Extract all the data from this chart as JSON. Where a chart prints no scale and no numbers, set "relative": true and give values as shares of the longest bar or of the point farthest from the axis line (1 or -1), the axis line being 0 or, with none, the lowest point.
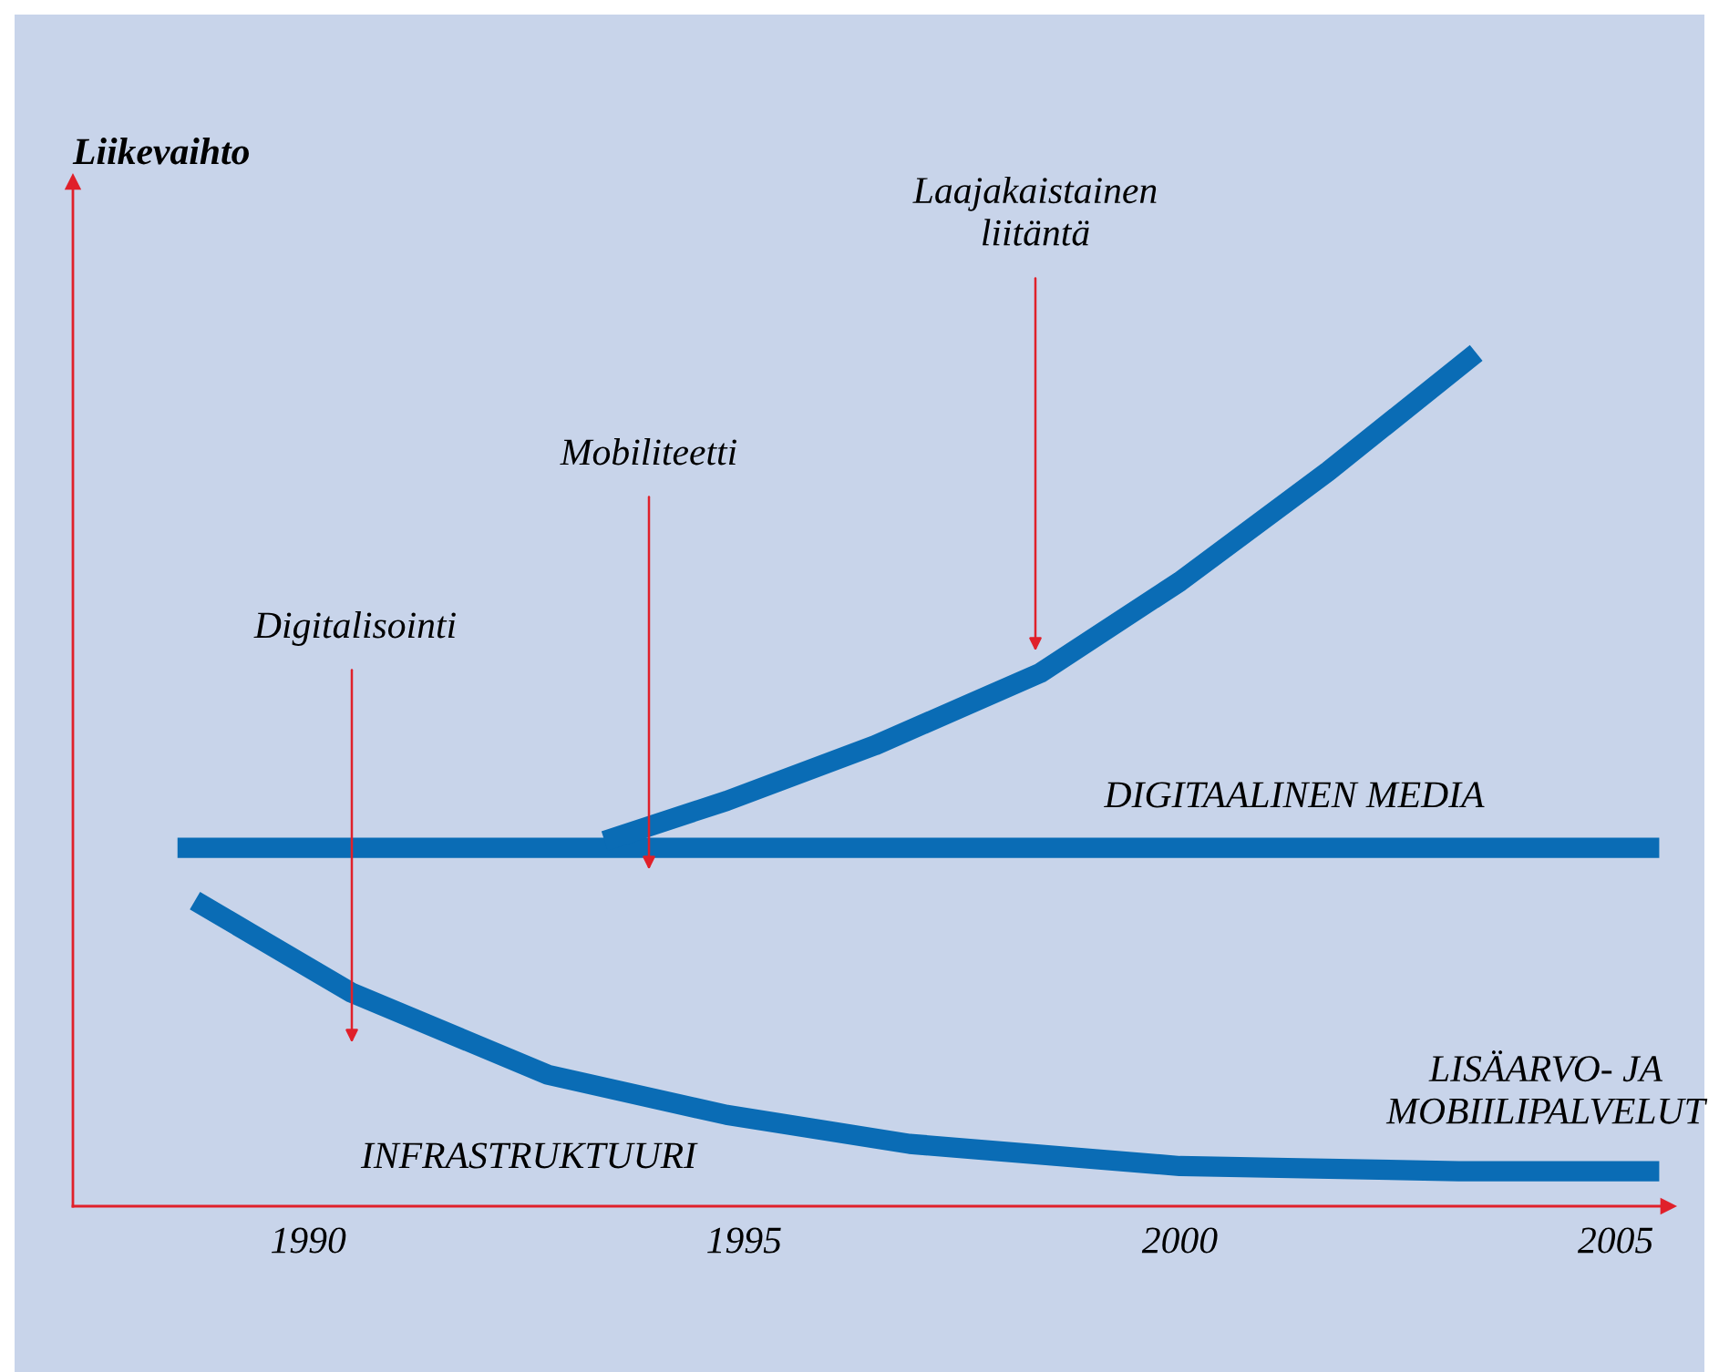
{
  "chart_data": {
    "type": "line",
    "relative": true,
    "xlim": [
      1987.3,
      2005.6
    ],
    "xticks": [
      1990,
      1995,
      2000,
      2005
    ],
    "grid": false,
    "legend": false,
    "tick_labels": "x",
    "series": [
      {
        "color": "#0a6cb5",
        "x": [
          1988.5,
          2005.5
        ],
        "values": [
          0.42,
          0.42
        ]
      },
      {
        "color": "#0a6cb5",
        "x": [
          1993.4,
          1994.8,
          1996.5,
          1998.4,
          2000.0,
          2001.7,
          2003.4
        ],
        "values": [
          0.428,
          0.475,
          0.54,
          0.625,
          0.732,
          0.861,
          1.0
        ]
      },
      {
        "color": "#0a6cb5",
        "x": [
          1988.7,
          1990.5,
          1992.75,
          1994.8,
          1996.9,
          2000.0,
          2003.2,
          2005.5
        ],
        "values": [
          0.358,
          0.25,
          0.154,
          0.107,
          0.073,
          0.047,
          0.041,
          0.041
        ]
      }
    ],
    "annotations": [
      "Liikevaihto",
      "Digitalisointi",
      "Mobiliteetti",
      "Laajakaistainen\nliitäntä",
      "DIGITAALINEN MEDIA",
      "LISÄARVO- JA\nMOBIILIPALVELUT",
      "INFRASTRUKTUURI"
    ]
  }
}
